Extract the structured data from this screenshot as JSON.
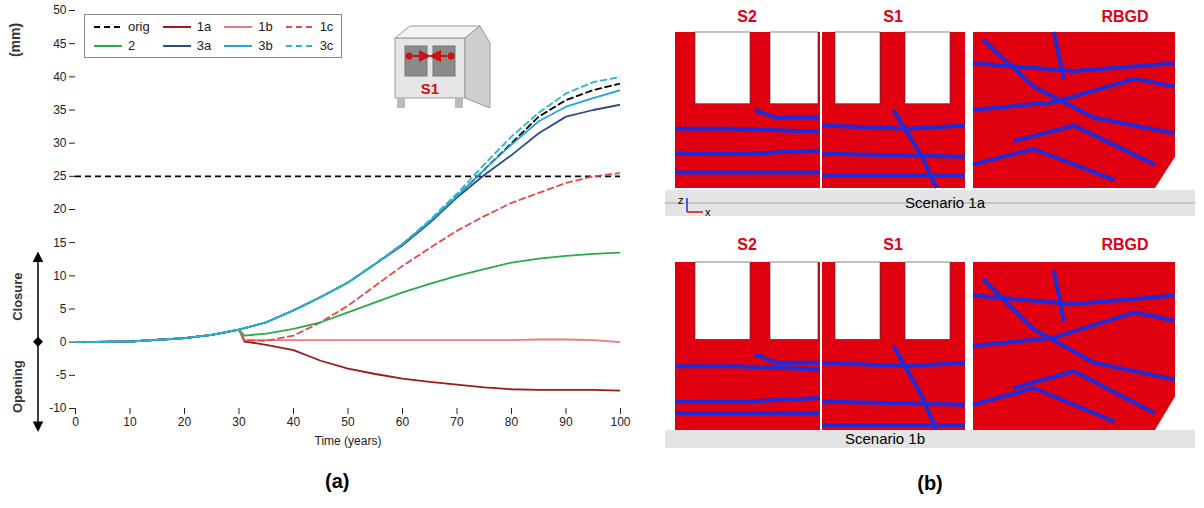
{
  "chart_data": {
    "type": "line",
    "panel_label": "(a)",
    "xlabel": "Time (years)",
    "ylabel": "(mm)",
    "side_labels": {
      "closure": "Closure",
      "opening": "Opening"
    },
    "inset_label": "S1",
    "xlim": [
      0,
      100
    ],
    "xticks": [
      0,
      10,
      20,
      30,
      40,
      50,
      60,
      70,
      80,
      90,
      100
    ],
    "ylim": [
      -10,
      50
    ],
    "yticks": [
      -10,
      -5,
      0,
      5,
      10,
      15,
      20,
      25,
      30,
      35,
      40,
      45,
      50
    ],
    "grid": false,
    "legend": "top-left",
    "hline": {
      "value": 25,
      "color": "#000000",
      "line_style": "dashed"
    },
    "x": [
      0,
      10,
      20,
      25,
      30,
      31,
      35,
      40,
      45,
      50,
      55,
      60,
      65,
      70,
      75,
      80,
      85,
      90,
      95,
      100
    ],
    "series": [
      {
        "name": "orig",
        "color": "#000000",
        "line_style": "dashed",
        "values": [
          0,
          0.1,
          0.6,
          1.1,
          1.9,
          2.1,
          3,
          4.8,
          6.8,
          9,
          11.8,
          14.8,
          18.2,
          22,
          26,
          30,
          34,
          36.5,
          38,
          39
        ]
      },
      {
        "name": "1a",
        "color": "#9b1b1b",
        "line_style": "solid",
        "values": [
          0,
          0.1,
          0.6,
          1.1,
          1.9,
          0.1,
          -0.4,
          -1.2,
          -2.8,
          -4,
          -4.8,
          -5.5,
          -6,
          -6.4,
          -6.8,
          -7.1,
          -7.2,
          -7.2,
          -7.2,
          -7.3
        ]
      },
      {
        "name": "1b",
        "color": "#e97c7c",
        "line_style": "solid",
        "values": [
          0,
          0.1,
          0.6,
          1.1,
          1.9,
          0.3,
          0.3,
          0.3,
          0.3,
          0.3,
          0.3,
          0.3,
          0.3,
          0.3,
          0.3,
          0.3,
          0.4,
          0.4,
          0.3,
          0
        ]
      },
      {
        "name": "1c",
        "color": "#e8474a",
        "line_style": "dashed",
        "values": [
          0,
          0.1,
          0.6,
          1.1,
          1.9,
          0.3,
          0.2,
          1,
          3,
          5.5,
          8.5,
          11.5,
          14.2,
          16.8,
          19,
          21,
          22.5,
          24,
          25,
          25.5
        ]
      },
      {
        "name": "2",
        "color": "#2ca94a",
        "line_style": "solid",
        "values": [
          0,
          0.1,
          0.6,
          1.1,
          1.9,
          1,
          1.3,
          2,
          3,
          4.5,
          6,
          7.5,
          8.8,
          10,
          11,
          12,
          12.6,
          13,
          13.3,
          13.5
        ]
      },
      {
        "name": "3a",
        "color": "#2e4a8a",
        "line_style": "solid",
        "values": [
          0,
          0.1,
          0.6,
          1.1,
          1.9,
          2.1,
          3,
          4.8,
          6.8,
          9,
          11.8,
          14.6,
          18,
          21.8,
          25.2,
          28.2,
          31.5,
          34,
          35,
          35.8
        ]
      },
      {
        "name": "3b",
        "color": "#27a3d8",
        "line_style": "solid",
        "values": [
          0,
          0.1,
          0.6,
          1.1,
          1.9,
          2.1,
          3,
          4.8,
          6.8,
          9,
          11.8,
          14.8,
          18.2,
          22,
          26,
          29.8,
          33.3,
          35.5,
          36.8,
          38
        ]
      },
      {
        "name": "3c",
        "color": "#2ab8c8",
        "line_style": "dashed",
        "values": [
          0,
          0.1,
          0.6,
          1.1,
          1.9,
          2.1,
          3,
          4.8,
          6.8,
          9,
          11.8,
          14.8,
          18.4,
          22.4,
          26.8,
          31,
          34.6,
          37.5,
          39.2,
          40
        ]
      }
    ]
  },
  "image_panel": {
    "panel_label": "(b)",
    "parts": [
      "S2",
      "S1",
      "RBGD"
    ],
    "scenarios": [
      "Scenario 1a",
      "Scenario 1b"
    ],
    "axes": [
      "z",
      "x"
    ]
  }
}
